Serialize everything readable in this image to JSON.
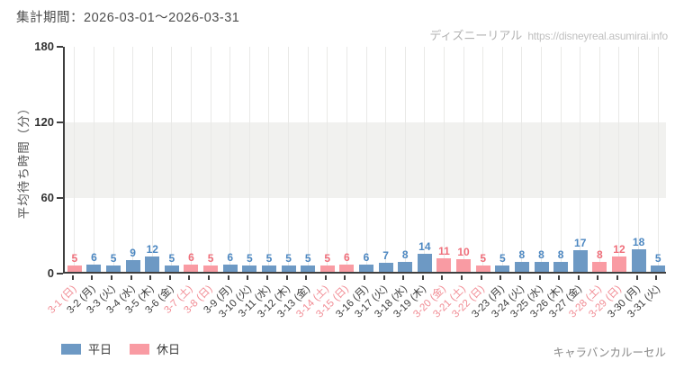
{
  "header": {
    "period_label": "集計期間：2026-03-01～2026-03-31"
  },
  "watermark": {
    "site_name": "ディズニーリアル",
    "url": "https://disneyreal.asumirai.info"
  },
  "legend": {
    "weekday_label": "平日",
    "holiday_label": "休日"
  },
  "footer": {
    "attraction_name": "キャラバンカルーセル"
  },
  "chart_data": {
    "type": "bar",
    "title": "",
    "xlabel": "",
    "ylabel": "平均待ち時間（分）",
    "ylim": [
      0,
      180
    ],
    "yticks": [
      0,
      60,
      120,
      180
    ],
    "shaded_band": {
      "from": 60,
      "to": 120,
      "color": "#f1f1ef"
    },
    "grid": "vertical-per-category",
    "legend_position": "bottom-left",
    "categories": [
      "3-1 (日)",
      "3-2 (月)",
      "3-3 (火)",
      "3-4 (水)",
      "3-5 (木)",
      "3-6 (金)",
      "3-7 (土)",
      "3-8 (日)",
      "3-9 (月)",
      "3-10 (火)",
      "3-11 (水)",
      "3-12 (木)",
      "3-13 (金)",
      "3-14 (土)",
      "3-15 (日)",
      "3-16 (月)",
      "3-17 (火)",
      "3-18 (水)",
      "3-19 (木)",
      "3-20 (金)",
      "3-21 (土)",
      "3-22 (日)",
      "3-23 (月)",
      "3-24 (火)",
      "3-25 (水)",
      "3-26 (木)",
      "3-27 (金)",
      "3-28 (土)",
      "3-29 (日)",
      "3-30 (月)",
      "3-31 (火)"
    ],
    "values": [
      5,
      6,
      5,
      9,
      12,
      5,
      6,
      5,
      6,
      5,
      5,
      5,
      5,
      5,
      6,
      6,
      7,
      8,
      14,
      11,
      10,
      5,
      5,
      8,
      8,
      8,
      17,
      8,
      12,
      18,
      5
    ],
    "day_types": [
      "holiday",
      "weekday",
      "weekday",
      "weekday",
      "weekday",
      "weekday",
      "holiday",
      "holiday",
      "weekday",
      "weekday",
      "weekday",
      "weekday",
      "weekday",
      "holiday",
      "holiday",
      "weekday",
      "weekday",
      "weekday",
      "weekday",
      "holiday",
      "holiday",
      "holiday",
      "weekday",
      "weekday",
      "weekday",
      "weekday",
      "weekday",
      "holiday",
      "holiday",
      "weekday",
      "weekday"
    ],
    "colors": {
      "weekday_bar": "#6d99c4",
      "holiday_bar": "#f99ba3",
      "weekday_value_label": "#4c87c1",
      "holiday_value_label": "#ef6e7a",
      "weekday_axis_label": "#3d3d3d",
      "holiday_axis_label": "#f18c94"
    }
  }
}
